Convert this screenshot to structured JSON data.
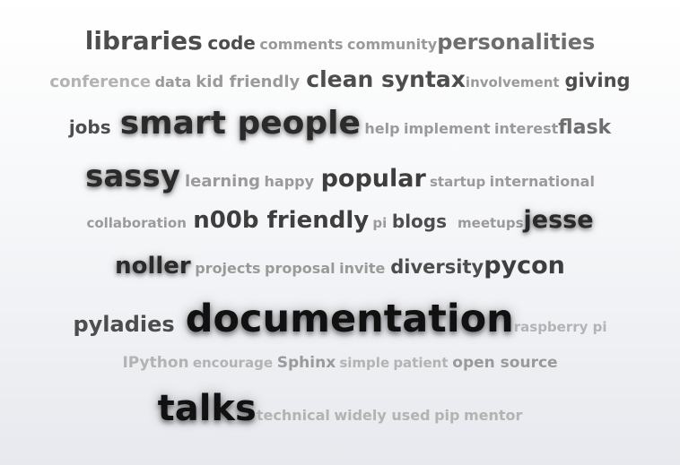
{
  "cloud": {
    "line1": [
      "libraries",
      "code",
      "comments",
      "community",
      "personalities"
    ],
    "line2": [
      "conference",
      "data",
      "kid friendly",
      "clean syntax",
      "involvement",
      "giving"
    ],
    "line3": [
      "jobs",
      "smart people",
      "help",
      "implement",
      "interest",
      "flask"
    ],
    "line4": [
      "sassy",
      "learning",
      "happy",
      "popular",
      "startup",
      "international"
    ],
    "line5": [
      "collaboration",
      "n00b friendly",
      "pi",
      "blogs",
      "meetups",
      "jesse"
    ],
    "line6": [
      "noller",
      "projects",
      "proposal",
      "invite",
      "diversity",
      "pycon"
    ],
    "line7": [
      "pyladies",
      "documentation",
      "raspberry pi"
    ],
    "line8": [
      "IPython",
      "encourage",
      "Sphinx",
      "simple",
      "patient",
      "open source"
    ],
    "line9": [
      "talks",
      "technical",
      "widely used",
      "pip",
      "mentor"
    ]
  }
}
